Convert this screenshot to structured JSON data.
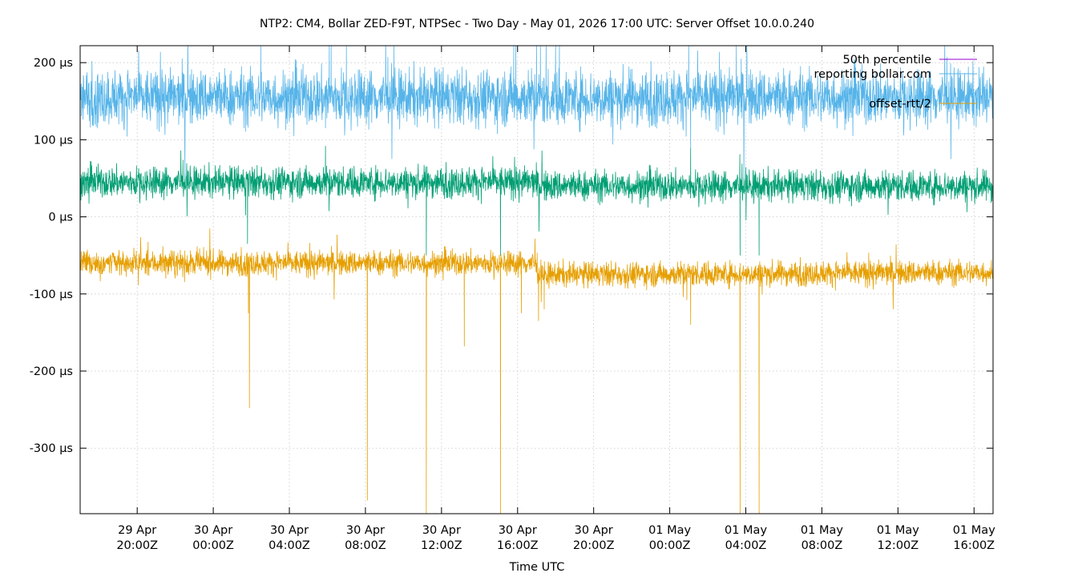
{
  "chart_data": {
    "type": "line",
    "title": "NTP2: CM4, Bollar ZED-F9T, NTPSec - Two Day - May 01, 2026 17:00 UTC: Server Offset 10.0.0.240",
    "xlabel": "Time UTC",
    "ylabel": "",
    "x_start": "29 Apr 17:00Z",
    "x_end": "01 May 17:00Z",
    "xlim": [
      0,
      48
    ],
    "ylim": [
      -385,
      222
    ],
    "grid": true,
    "legend_position": "top-right",
    "x_ticks": [
      {
        "x": 3,
        "date": "29 Apr",
        "time": "20:00Z"
      },
      {
        "x": 7,
        "date": "30 Apr",
        "time": "00:00Z"
      },
      {
        "x": 11,
        "date": "30 Apr",
        "time": "04:00Z"
      },
      {
        "x": 15,
        "date": "30 Apr",
        "time": "08:00Z"
      },
      {
        "x": 19,
        "date": "30 Apr",
        "time": "12:00Z"
      },
      {
        "x": 23,
        "date": "30 Apr",
        "time": "16:00Z"
      },
      {
        "x": 27,
        "date": "30 Apr",
        "time": "20:00Z"
      },
      {
        "x": 31,
        "date": "01 May",
        "time": "00:00Z"
      },
      {
        "x": 35,
        "date": "01 May",
        "time": "04:00Z"
      },
      {
        "x": 39,
        "date": "01 May",
        "time": "08:00Z"
      },
      {
        "x": 43,
        "date": "01 May",
        "time": "12:00Z"
      },
      {
        "x": 47,
        "date": "01 May",
        "time": "16:00Z"
      }
    ],
    "y_ticks": [
      {
        "value": 200,
        "label": "200 µs"
      },
      {
        "value": 100,
        "label": "100 µs"
      },
      {
        "value": 0,
        "label": "0 µs"
      },
      {
        "value": -100,
        "label": "-100 µs"
      },
      {
        "value": -200,
        "label": "-200 µs"
      },
      {
        "value": -300,
        "label": "-300 µs"
      }
    ],
    "series": [
      {
        "name": "50th percentile",
        "color": "#9400d3",
        "values": []
      },
      {
        "name": "reporting bollar.com",
        "color": "#56b4e9",
        "baseline": [
          [
            0,
            155
          ],
          [
            48,
            155
          ]
        ],
        "noise": 18,
        "spikes": [
          [
            9.5,
            222
          ],
          [
            13.1,
            222
          ],
          [
            13.2,
            222
          ],
          [
            14.0,
            222
          ],
          [
            22.8,
            222
          ],
          [
            22.9,
            222
          ],
          [
            24.0,
            222
          ],
          [
            24.2,
            222
          ],
          [
            24.5,
            222
          ],
          [
            25.0,
            222
          ],
          [
            25.2,
            222
          ],
          [
            32.0,
            222
          ],
          [
            12.9,
            115
          ],
          [
            32.1,
            88
          ],
          [
            16.5,
            222
          ],
          [
            34.5,
            222
          ]
        ]
      },
      {
        "name": "reporting",
        "color": "#009e73",
        "baseline": [
          [
            0,
            45
          ],
          [
            23.9,
            45
          ],
          [
            24.1,
            40
          ],
          [
            48,
            40
          ]
        ],
        "noise": 10,
        "spikes": [
          [
            8.8,
            -35
          ],
          [
            8.7,
            2
          ],
          [
            18.2,
            -50
          ],
          [
            22.1,
            -50
          ],
          [
            34.7,
            -50
          ],
          [
            35.7,
            -50
          ],
          [
            12.9,
            92
          ],
          [
            32.1,
            90
          ]
        ]
      },
      {
        "name": "offset-rtt/2",
        "color": "#e69f00",
        "baseline": [
          [
            0,
            -60
          ],
          [
            23.9,
            -60
          ],
          [
            24.1,
            -75
          ],
          [
            48,
            -72
          ]
        ],
        "noise": 8,
        "spikes": [
          [
            8.9,
            -248
          ],
          [
            8.85,
            -125
          ],
          [
            15.1,
            -368
          ],
          [
            18.2,
            -385
          ],
          [
            20.2,
            -168
          ],
          [
            22.1,
            -385
          ],
          [
            23.2,
            -125
          ],
          [
            24.1,
            -135
          ],
          [
            24.4,
            -120
          ],
          [
            32.1,
            -140
          ],
          [
            31.9,
            -108
          ],
          [
            34.7,
            -385
          ],
          [
            35.7,
            -385
          ]
        ]
      }
    ]
  }
}
